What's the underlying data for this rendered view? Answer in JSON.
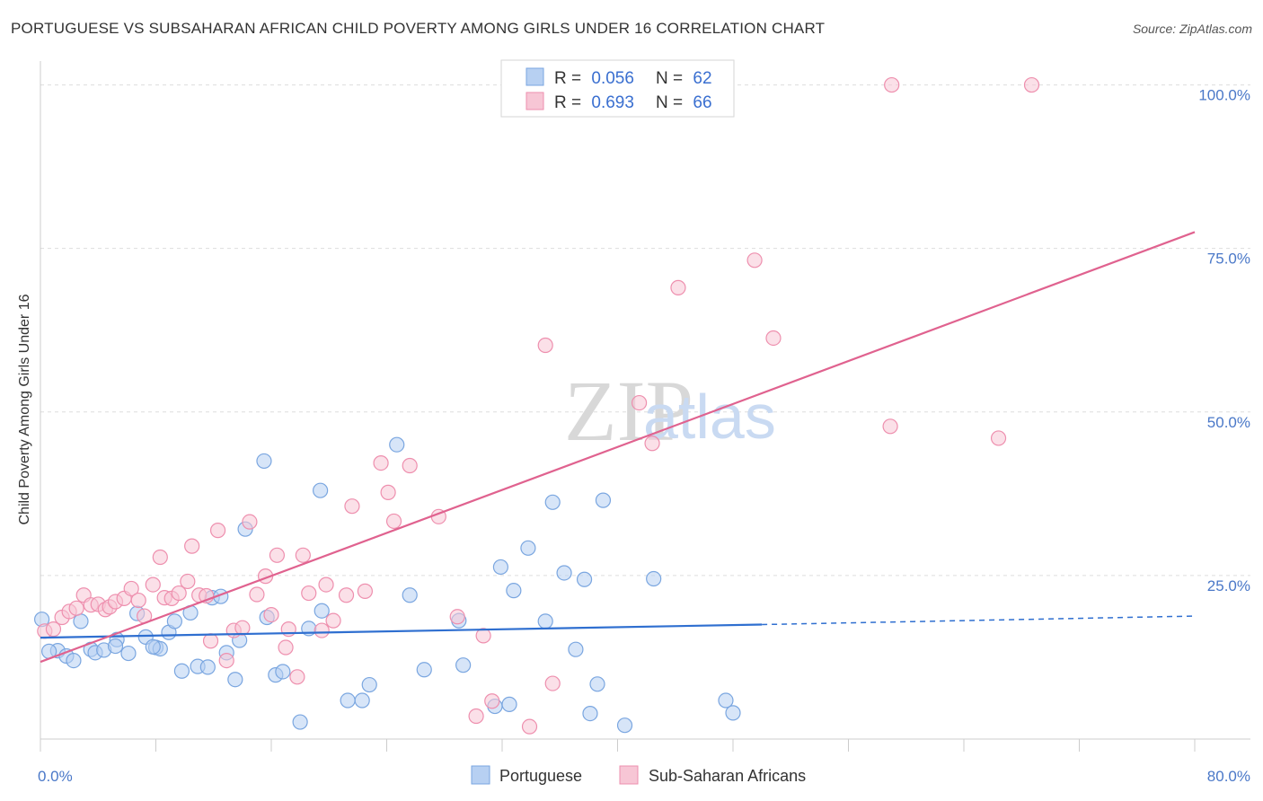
{
  "title": "PORTUGUESE VS SUBSAHARAN AFRICAN CHILD POVERTY AMONG GIRLS UNDER 16 CORRELATION CHART",
  "source": "Source: ZipAtlas.com",
  "watermark": {
    "zip": "ZIP",
    "atlas": "atlas"
  },
  "colors": {
    "blue_fill": "#b7d0f2",
    "blue_stroke": "#7aa6e0",
    "blue_line": "#2f6fd0",
    "pink_fill": "#f7c6d5",
    "pink_stroke": "#ee8fae",
    "pink_line": "#e0628f",
    "tick_text": "#4a78c8",
    "grid": "#dddddd"
  },
  "legend": {
    "rows": [
      {
        "r_label": "R = ",
        "r_value": "0.056",
        "n_label": "N = ",
        "n_value": "62"
      },
      {
        "r_label": "R = ",
        "r_value": "0.693",
        "n_label": "N = ",
        "n_value": "66"
      }
    ]
  },
  "chart_data": {
    "type": "scatter",
    "title": "PORTUGUESE VS SUBSAHARAN AFRICAN CHILD POVERTY AMONG GIRLS UNDER 16 CORRELATION CHART",
    "xlabel": "",
    "ylabel": "Child Poverty Among Girls Under 16",
    "xlim": [
      0,
      80
    ],
    "ylim": [
      0,
      102
    ],
    "x_tick_labels": [
      {
        "value": 0,
        "label": "0.0%"
      },
      {
        "value": 80,
        "label": "80.0%"
      }
    ],
    "y_tick_labels": [
      {
        "value": 100,
        "label": "100.0%"
      },
      {
        "value": 75,
        "label": "75.0%"
      },
      {
        "value": 50,
        "label": "50.0%"
      },
      {
        "value": 25,
        "label": "25.0%"
      }
    ],
    "grid": true,
    "legend_position": "top-center",
    "series": [
      {
        "name": "Portuguese",
        "color": "#7aa6e0",
        "points": [
          [
            0.1,
            18.3
          ],
          [
            1.2,
            13.5
          ],
          [
            1.8,
            12.7
          ],
          [
            2.3,
            12.0
          ],
          [
            2.8,
            18.0
          ],
          [
            3.5,
            13.7
          ],
          [
            3.8,
            13.2
          ],
          [
            4.4,
            13.6
          ],
          [
            5.3,
            15.2
          ],
          [
            5.2,
            14.2
          ],
          [
            6.1,
            13.1
          ],
          [
            6.7,
            19.2
          ],
          [
            7.3,
            15.6
          ],
          [
            8.0,
            14.0
          ],
          [
            8.3,
            13.8
          ],
          [
            8.9,
            16.3
          ],
          [
            9.3,
            18.0
          ],
          [
            9.8,
            10.4
          ],
          [
            10.4,
            19.3
          ],
          [
            10.9,
            11.1
          ],
          [
            11.6,
            11.0
          ],
          [
            11.9,
            21.6
          ],
          [
            12.5,
            21.8
          ],
          [
            12.9,
            13.2
          ],
          [
            13.5,
            9.1
          ],
          [
            13.8,
            15.1
          ],
          [
            14.2,
            32.1
          ],
          [
            15.5,
            42.5
          ],
          [
            15.7,
            18.6
          ],
          [
            16.3,
            9.8
          ],
          [
            16.8,
            10.3
          ],
          [
            18.0,
            2.6
          ],
          [
            18.6,
            16.9
          ],
          [
            19.4,
            38.0
          ],
          [
            19.5,
            19.6
          ],
          [
            21.3,
            5.9
          ],
          [
            22.3,
            5.9
          ],
          [
            22.8,
            8.3
          ],
          [
            24.7,
            45.0
          ],
          [
            25.6,
            22.0
          ],
          [
            26.6,
            10.6
          ],
          [
            29.0,
            18.1
          ],
          [
            29.3,
            11.3
          ],
          [
            31.5,
            5.0
          ],
          [
            31.9,
            26.3
          ],
          [
            32.5,
            5.3
          ],
          [
            32.8,
            22.7
          ],
          [
            33.8,
            29.2
          ],
          [
            35.0,
            18.0
          ],
          [
            35.5,
            36.2
          ],
          [
            36.3,
            25.4
          ],
          [
            37.1,
            13.7
          ],
          [
            37.7,
            24.4
          ],
          [
            38.1,
            3.9
          ],
          [
            38.6,
            8.4
          ],
          [
            39.0,
            36.5
          ],
          [
            40.5,
            2.1
          ],
          [
            42.5,
            24.5
          ],
          [
            47.5,
            5.9
          ],
          [
            48.0,
            4.0
          ],
          [
            0.6,
            13.4
          ],
          [
            7.8,
            14.1
          ]
        ]
      },
      {
        "name": "Sub-Saharan Africans",
        "color": "#ee8fae",
        "points": [
          [
            0.3,
            16.5
          ],
          [
            0.9,
            16.8
          ],
          [
            1.5,
            18.6
          ],
          [
            2.0,
            19.5
          ],
          [
            2.5,
            20.0
          ],
          [
            3.0,
            22.0
          ],
          [
            3.5,
            20.5
          ],
          [
            4.0,
            20.6
          ],
          [
            4.5,
            19.8
          ],
          [
            4.8,
            20.2
          ],
          [
            5.2,
            21.0
          ],
          [
            5.8,
            21.5
          ],
          [
            6.3,
            23.0
          ],
          [
            6.8,
            21.2
          ],
          [
            7.2,
            18.8
          ],
          [
            7.8,
            23.6
          ],
          [
            8.3,
            27.8
          ],
          [
            8.6,
            21.6
          ],
          [
            9.1,
            21.5
          ],
          [
            9.6,
            22.3
          ],
          [
            10.2,
            24.1
          ],
          [
            10.5,
            29.5
          ],
          [
            11.0,
            22.0
          ],
          [
            11.5,
            21.9
          ],
          [
            11.8,
            15.0
          ],
          [
            12.3,
            31.9
          ],
          [
            12.9,
            12.0
          ],
          [
            13.4,
            16.6
          ],
          [
            14.0,
            17.0
          ],
          [
            14.5,
            33.2
          ],
          [
            15.0,
            22.1
          ],
          [
            15.6,
            24.9
          ],
          [
            16.0,
            19.0
          ],
          [
            16.4,
            28.1
          ],
          [
            17.2,
            16.8
          ],
          [
            17.8,
            9.5
          ],
          [
            18.2,
            28.1
          ],
          [
            18.6,
            22.3
          ],
          [
            19.5,
            16.6
          ],
          [
            19.8,
            23.6
          ],
          [
            20.3,
            18.1
          ],
          [
            21.2,
            22.0
          ],
          [
            21.6,
            35.6
          ],
          [
            22.5,
            22.6
          ],
          [
            23.6,
            42.2
          ],
          [
            24.1,
            37.7
          ],
          [
            24.5,
            33.3
          ],
          [
            25.6,
            41.8
          ],
          [
            27.6,
            34.0
          ],
          [
            28.9,
            18.7
          ],
          [
            30.2,
            3.5
          ],
          [
            30.7,
            15.8
          ],
          [
            31.3,
            5.8
          ],
          [
            33.9,
            1.9
          ],
          [
            35.0,
            60.2
          ],
          [
            35.5,
            8.5
          ],
          [
            41.5,
            51.4
          ],
          [
            42.4,
            45.2
          ],
          [
            44.2,
            69.0
          ],
          [
            49.5,
            73.2
          ],
          [
            50.8,
            61.3
          ],
          [
            58.9,
            47.8
          ],
          [
            59.0,
            100.0
          ],
          [
            66.4,
            46.0
          ],
          [
            68.7,
            100.0
          ],
          [
            17.0,
            14.0
          ]
        ]
      }
    ],
    "trend_lines": [
      {
        "series": "Portuguese",
        "x0": 0,
        "y0": 15.5,
        "x1": 50,
        "y1": 17.5,
        "dashed_to_x": 80,
        "dashed_to_y": 18.8
      },
      {
        "series": "Sub-Saharan Africans",
        "x0": 0,
        "y0": 11.8,
        "x1": 80,
        "y1": 77.5
      }
    ]
  },
  "bottom_legend": [
    {
      "label": "Portuguese"
    },
    {
      "label": "Sub-Saharan Africans"
    }
  ]
}
